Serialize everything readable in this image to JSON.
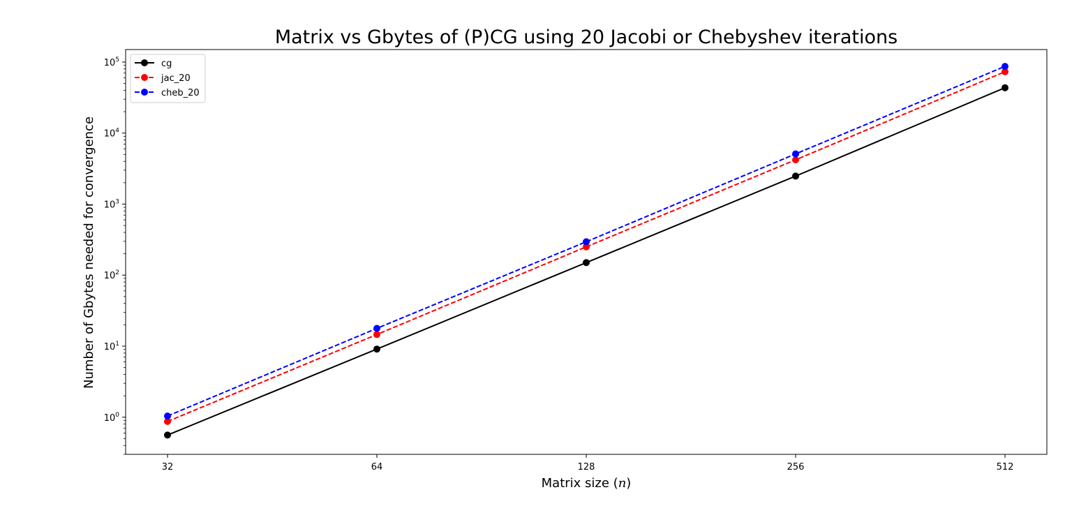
{
  "chart_data": {
    "type": "line",
    "title": "Matrix vs Gbytes of (P)CG using 20 Jacobi or Chebyshev iterations",
    "xlabel_prefix": "Matrix size (",
    "xlabel_var": "n",
    "xlabel_suffix": ")",
    "ylabel": "Number of Gbytes needed for convergence",
    "x_scale": "log2",
    "y_scale": "log10",
    "x": [
      32,
      64,
      128,
      256,
      512
    ],
    "x_tick_labels": [
      "32",
      "64",
      "128",
      "256",
      "512"
    ],
    "y_ticks": [
      {
        "value": 1,
        "base": "10",
        "exp": "0"
      },
      {
        "value": 10,
        "base": "10",
        "exp": "1"
      },
      {
        "value": 100,
        "base": "10",
        "exp": "2"
      },
      {
        "value": 1000,
        "base": "10",
        "exp": "3"
      },
      {
        "value": 10000,
        "base": "10",
        "exp": "4"
      },
      {
        "value": 100000,
        "base": "10",
        "exp": "5"
      }
    ],
    "ylim": [
      0.3,
      150000
    ],
    "grid": false,
    "legend_position": "top-left",
    "series": [
      {
        "name": "cg",
        "color": "#000000",
        "dashed": false,
        "values": [
          0.56,
          9.1,
          150,
          2480,
          43500
        ]
      },
      {
        "name": "jac_20",
        "color": "#ff0000",
        "dashed": true,
        "values": [
          0.87,
          14.6,
          250,
          4200,
          73000
        ]
      },
      {
        "name": "cheb_20",
        "color": "#0000ff",
        "dashed": true,
        "values": [
          1.04,
          17.8,
          295,
          5100,
          87000
        ]
      }
    ]
  }
}
